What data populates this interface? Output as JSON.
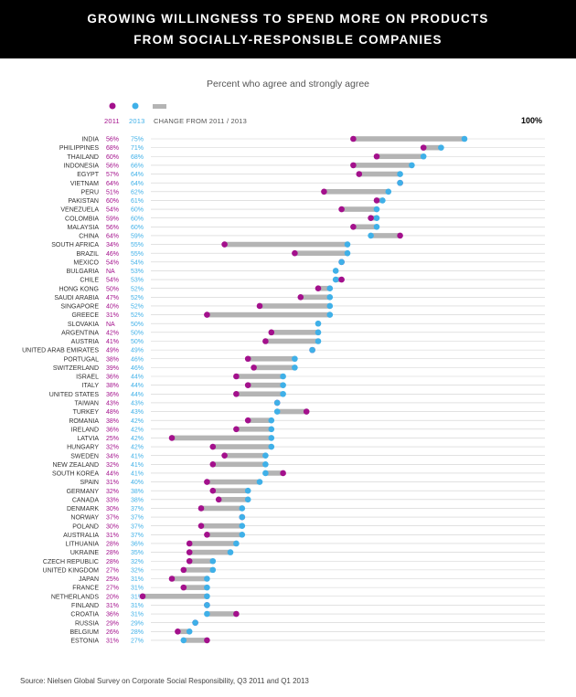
{
  "header": {
    "title_line1": "GROWING WILLINGNESS TO SPEND MORE ON PRODUCTS",
    "title_line2": "FROM SOCIALLY-RESPONSIBLE COMPANIES"
  },
  "colors": {
    "series_2011": "#a3108c",
    "series_2013": "#3fb0e8",
    "change_bar": "#b4b4b4",
    "header_bg": "#000000"
  },
  "legend": {
    "label_2011": "2011",
    "label_2013": "2013",
    "label_change": "CHANGE FROM 2011 / 2013"
  },
  "footer": {
    "source": "Source: Nielsen Global Survey on Corporate Social Responsibility, Q3 2011 and Q1 2013"
  },
  "chart_data": {
    "type": "dot-plot",
    "title": "GROWING WILLINGNESS TO SPEND MORE ON PRODUCTS FROM SOCIALLY-RESPONSIBLE COMPANIES",
    "subtitle": "Percent who agree and strongly agree",
    "axis_max_label": "100%",
    "xlim": [
      0,
      100
    ],
    "series": [
      {
        "name": "2011"
      },
      {
        "name": "2013"
      }
    ],
    "rows": [
      {
        "country": "INDIA",
        "v2011": 56,
        "v2013": 75
      },
      {
        "country": "PHILIPPINES",
        "v2011": 68,
        "v2013": 71
      },
      {
        "country": "THAILAND",
        "v2011": 60,
        "v2013": 68
      },
      {
        "country": "INDONESIA",
        "v2011": 56,
        "v2013": 66
      },
      {
        "country": "EGYPT",
        "v2011": 57,
        "v2013": 64
      },
      {
        "country": "VIETNAM",
        "v2011": 64,
        "v2013": 64
      },
      {
        "country": "PERU",
        "v2011": 51,
        "v2013": 62
      },
      {
        "country": "PAKISTAN",
        "v2011": 60,
        "v2013": 61
      },
      {
        "country": "VENEZUELA",
        "v2011": 54,
        "v2013": 60
      },
      {
        "country": "COLOMBIA",
        "v2011": 59,
        "v2013": 60
      },
      {
        "country": "MALAYSIA",
        "v2011": 56,
        "v2013": 60
      },
      {
        "country": "CHINA",
        "v2011": 64,
        "v2013": 59
      },
      {
        "country": "SOUTH AFRICA",
        "v2011": 34,
        "v2013": 55
      },
      {
        "country": "BRAZIL",
        "v2011": 46,
        "v2013": 55
      },
      {
        "country": "MEXICO",
        "v2011": 54,
        "v2013": 54
      },
      {
        "country": "BULGARIA",
        "v2011": null,
        "v2013": 53
      },
      {
        "country": "CHILE",
        "v2011": 54,
        "v2013": 53
      },
      {
        "country": "HONG KONG",
        "v2011": 50,
        "v2013": 52
      },
      {
        "country": "SAUDI ARABIA",
        "v2011": 47,
        "v2013": 52
      },
      {
        "country": "SINGAPORE",
        "v2011": 40,
        "v2013": 52
      },
      {
        "country": "GREECE",
        "v2011": 31,
        "v2013": 52
      },
      {
        "country": "SLOVAKIA",
        "v2011": null,
        "v2013": 50
      },
      {
        "country": "ARGENTINA",
        "v2011": 42,
        "v2013": 50
      },
      {
        "country": "AUSTRIA",
        "v2011": 41,
        "v2013": 50
      },
      {
        "country": "UNITED ARAB EMIRATES",
        "v2011": 49,
        "v2013": 49
      },
      {
        "country": "PORTUGAL",
        "v2011": 38,
        "v2013": 46
      },
      {
        "country": "SWITZERLAND",
        "v2011": 39,
        "v2013": 46
      },
      {
        "country": "ISRAEL",
        "v2011": 36,
        "v2013": 44
      },
      {
        "country": "ITALY",
        "v2011": 38,
        "v2013": 44
      },
      {
        "country": "UNITED STATES",
        "v2011": 36,
        "v2013": 44
      },
      {
        "country": "TAIWAN",
        "v2011": 43,
        "v2013": 43
      },
      {
        "country": "TURKEY",
        "v2011": 48,
        "v2013": 43
      },
      {
        "country": "ROMANIA",
        "v2011": 38,
        "v2013": 42
      },
      {
        "country": "IRELAND",
        "v2011": 36,
        "v2013": 42
      },
      {
        "country": "LATVIA",
        "v2011": 25,
        "v2013": 42
      },
      {
        "country": "HUNGARY",
        "v2011": 32,
        "v2013": 42
      },
      {
        "country": "SWEDEN",
        "v2011": 34,
        "v2013": 41
      },
      {
        "country": "NEW ZEALAND",
        "v2011": 32,
        "v2013": 41
      },
      {
        "country": "SOUTH KOREA",
        "v2011": 44,
        "v2013": 41
      },
      {
        "country": "SPAIN",
        "v2011": 31,
        "v2013": 40
      },
      {
        "country": "GERMANY",
        "v2011": 32,
        "v2013": 38
      },
      {
        "country": "CANADA",
        "v2011": 33,
        "v2013": 38
      },
      {
        "country": "DENMARK",
        "v2011": 30,
        "v2013": 37
      },
      {
        "country": "NORWAY",
        "v2011": 37,
        "v2013": 37
      },
      {
        "country": "POLAND",
        "v2011": 30,
        "v2013": 37
      },
      {
        "country": "AUSTRALIA",
        "v2011": 31,
        "v2013": 37
      },
      {
        "country": "LITHUANIA",
        "v2011": 28,
        "v2013": 36
      },
      {
        "country": "UKRAINE",
        "v2011": 28,
        "v2013": 35
      },
      {
        "country": "CZECH REPUBLIC",
        "v2011": 28,
        "v2013": 32
      },
      {
        "country": "UNITED KINGDOM",
        "v2011": 27,
        "v2013": 32
      },
      {
        "country": "JAPAN",
        "v2011": 25,
        "v2013": 31
      },
      {
        "country": "FRANCE",
        "v2011": 27,
        "v2013": 31
      },
      {
        "country": "NETHERLANDS",
        "v2011": 20,
        "v2013": 31
      },
      {
        "country": "FINLAND",
        "v2011": 31,
        "v2013": 31
      },
      {
        "country": "CROATIA",
        "v2011": 36,
        "v2013": 31
      },
      {
        "country": "RUSSIA",
        "v2011": 29,
        "v2013": 29
      },
      {
        "country": "BELGIUM",
        "v2011": 26,
        "v2013": 28
      },
      {
        "country": "ESTONIA",
        "v2011": 31,
        "v2013": 27
      }
    ],
    "na_label": "NA"
  }
}
